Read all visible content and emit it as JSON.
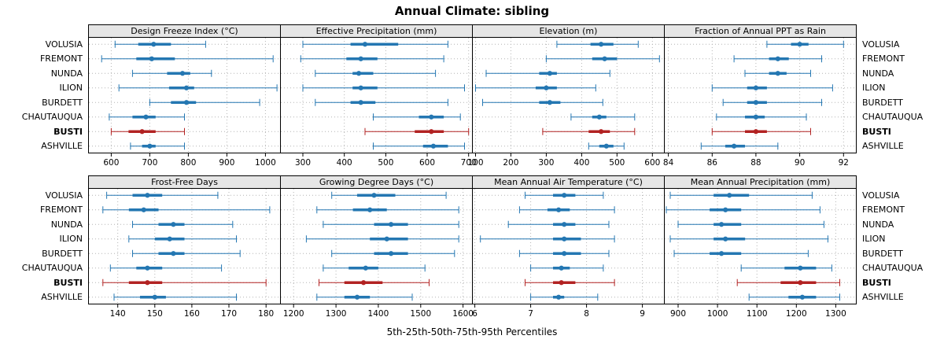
{
  "title": "Annual Climate: sibling",
  "caption": "5th-25th-50th-75th-95th Percentiles",
  "colors": {
    "normal": "#2477b2",
    "highlight": "#b22222",
    "strip_bg": "#e6e6e6",
    "grid": "#b4b4b4",
    "border": "#000000"
  },
  "locations": [
    "VOLUSIA",
    "FREMONT",
    "NUNDA",
    "ILION",
    "BURDETT",
    "CHAUTAUQUA",
    "BUSTI",
    "ASHVILLE"
  ],
  "highlight_location": "BUSTI",
  "chart_data": {
    "type": "percentile-whisker",
    "note": "values per location are [p5, p25, p50, p75, p95]",
    "layout": {
      "rows": 2,
      "cols": 4
    },
    "panels": [
      {
        "title": "Design Freeze Index (°C)",
        "xlim": [
          540,
          1040
        ],
        "ticks": [
          600,
          700,
          800,
          900,
          1000
        ],
        "values": {
          "VOLUSIA": [
            610,
            670,
            710,
            755,
            845
          ],
          "FREMONT": [
            575,
            665,
            705,
            765,
            1020
          ],
          "NUNDA": [
            655,
            745,
            785,
            805,
            860
          ],
          "ILION": [
            620,
            750,
            795,
            815,
            1030
          ],
          "BURDETT": [
            700,
            755,
            795,
            820,
            985
          ],
          "CHAUTAUQUA": [
            595,
            655,
            690,
            715,
            790
          ],
          "BUSTI": [
            600,
            645,
            680,
            715,
            790
          ],
          "ASHVILLE": [
            650,
            680,
            700,
            715,
            790
          ]
        }
      },
      {
        "title": "Effective Precipitation (mm)",
        "xlim": [
          245,
          710
        ],
        "ticks": [
          300,
          400,
          500,
          600,
          700
        ],
        "values": {
          "VOLUSIA": [
            300,
            415,
            450,
            530,
            650
          ],
          "FREMONT": [
            295,
            405,
            440,
            480,
            640
          ],
          "NUNDA": [
            330,
            420,
            435,
            470,
            620
          ],
          "ILION": [
            300,
            420,
            440,
            480,
            690
          ],
          "BURDETT": [
            330,
            415,
            440,
            475,
            650
          ],
          "CHAUTAUQUA": [
            470,
            580,
            610,
            640,
            680
          ],
          "BUSTI": [
            450,
            570,
            610,
            640,
            700
          ],
          "ASHVILLE": [
            470,
            590,
            615,
            650,
            690
          ]
        }
      },
      {
        "title": "Elevation (m)",
        "xlim": [
          90,
          635
        ],
        "ticks": [
          100,
          200,
          300,
          400,
          500,
          600
        ],
        "values": {
          "VOLUSIA": [
            330,
            425,
            455,
            490,
            560
          ],
          "FREMONT": [
            300,
            430,
            465,
            500,
            620
          ],
          "NUNDA": [
            130,
            280,
            310,
            330,
            480
          ],
          "ILION": [
            100,
            270,
            300,
            330,
            440
          ],
          "BURDETT": [
            120,
            280,
            310,
            340,
            460
          ],
          "CHAUTAUQUA": [
            370,
            430,
            450,
            470,
            550
          ],
          "BUSTI": [
            290,
            420,
            455,
            480,
            550
          ],
          "ASHVILLE": [
            420,
            450,
            470,
            490,
            520
          ]
        }
      },
      {
        "title": "Fraction of Annual PPT as Rain",
        "xlim": [
          83.8,
          92.6
        ],
        "ticks": [
          84,
          86,
          88,
          90,
          92
        ],
        "values": {
          "VOLUSIA": [
            88.5,
            89.6,
            90.0,
            90.4,
            92.0
          ],
          "FREMONT": [
            87.0,
            88.6,
            89.0,
            89.5,
            91.0
          ],
          "NUNDA": [
            87.5,
            88.6,
            89.0,
            89.4,
            90.5
          ],
          "ILION": [
            86.0,
            87.6,
            88.0,
            88.5,
            91.5
          ],
          "BURDETT": [
            86.5,
            87.6,
            88.0,
            88.5,
            91.0
          ],
          "CHAUTAUQUA": [
            86.2,
            87.5,
            88.0,
            88.4,
            90.3
          ],
          "BUSTI": [
            86.0,
            87.5,
            88.0,
            88.5,
            90.5
          ],
          "ASHVILLE": [
            85.5,
            86.6,
            87.0,
            87.5,
            89.0
          ]
        }
      },
      {
        "title": "Frost-Free Days",
        "xlim": [
          132,
          184
        ],
        "ticks": [
          140,
          150,
          160,
          170,
          180
        ],
        "values": {
          "VOLUSIA": [
            137,
            144,
            148,
            152,
            167
          ],
          "FREMONT": [
            136,
            143,
            147,
            151,
            181
          ],
          "NUNDA": [
            144,
            151,
            155,
            158,
            171
          ],
          "ILION": [
            143,
            150,
            154,
            158,
            172
          ],
          "BURDETT": [
            144,
            151,
            155,
            158,
            173
          ],
          "CHAUTAUQUA": [
            138,
            145,
            148,
            152,
            168
          ],
          "BUSTI": [
            136,
            143,
            148,
            152,
            180
          ],
          "ASHVILLE": [
            139,
            146,
            150,
            153,
            172
          ]
        }
      },
      {
        "title": "Growing Degree Days (°C)",
        "xlim": [
          1168,
          1623
        ],
        "ticks": [
          1200,
          1300,
          1400,
          1500,
          1600
        ],
        "values": {
          "VOLUSIA": [
            1290,
            1350,
            1390,
            1440,
            1560
          ],
          "FREMONT": [
            1255,
            1340,
            1380,
            1420,
            1590
          ],
          "NUNDA": [
            1270,
            1390,
            1430,
            1470,
            1590
          ],
          "ILION": [
            1230,
            1380,
            1420,
            1470,
            1590
          ],
          "BURDETT": [
            1290,
            1390,
            1430,
            1470,
            1580
          ],
          "CHAUTAUQUA": [
            1270,
            1330,
            1370,
            1400,
            1510
          ],
          "BUSTI": [
            1260,
            1320,
            1365,
            1410,
            1520
          ],
          "ASHVILLE": [
            1255,
            1320,
            1350,
            1380,
            1480
          ]
        }
      },
      {
        "title": "Mean Annual Air Temperature (°C)",
        "xlim": [
          5.95,
          9.4
        ],
        "ticks": [
          6,
          7,
          8,
          9
        ],
        "values": {
          "VOLUSIA": [
            6.9,
            7.4,
            7.6,
            7.8,
            8.3
          ],
          "FREMONT": [
            6.8,
            7.3,
            7.5,
            7.7,
            8.5
          ],
          "NUNDA": [
            6.6,
            7.4,
            7.6,
            7.8,
            8.4
          ],
          "ILION": [
            6.1,
            7.4,
            7.6,
            7.9,
            8.5
          ],
          "BURDETT": [
            6.8,
            7.4,
            7.6,
            7.9,
            8.4
          ],
          "CHAUTAUQUA": [
            7.0,
            7.4,
            7.55,
            7.7,
            8.3
          ],
          "BUSTI": [
            6.9,
            7.4,
            7.55,
            7.8,
            8.5
          ],
          "ASHVILLE": [
            7.0,
            7.4,
            7.5,
            7.6,
            8.2
          ]
        }
      },
      {
        "title": "Mean Annual Precipitation (mm)",
        "xlim": [
          864,
          1353
        ],
        "ticks": [
          900,
          1000,
          1100,
          1200,
          1300
        ],
        "values": {
          "VOLUSIA": [
            880,
            990,
            1030,
            1080,
            1240
          ],
          "FREMONT": [
            870,
            980,
            1020,
            1060,
            1260
          ],
          "NUNDA": [
            900,
            990,
            1010,
            1060,
            1270
          ],
          "ILION": [
            880,
            990,
            1020,
            1070,
            1280
          ],
          "BURDETT": [
            890,
            980,
            1010,
            1060,
            1230
          ],
          "CHAUTAUQUA": [
            1060,
            1170,
            1210,
            1250,
            1290
          ],
          "BUSTI": [
            1050,
            1160,
            1210,
            1250,
            1310
          ],
          "ASHVILLE": [
            1080,
            1180,
            1215,
            1250,
            1310
          ]
        }
      }
    ]
  }
}
